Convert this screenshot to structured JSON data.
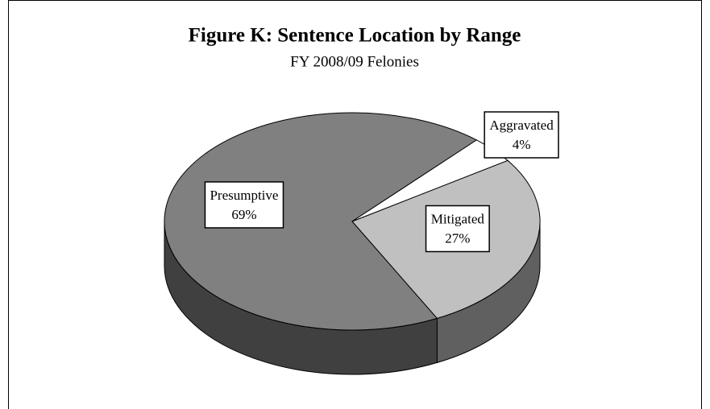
{
  "chart_data": {
    "type": "pie",
    "title": "Figure K:  Sentence Location by Range",
    "subtitle": "FY 2008/09 Felonies",
    "categories": [
      "Presumptive",
      "Mitigated",
      "Aggravated"
    ],
    "values": [
      69,
      27,
      4
    ],
    "value_labels": [
      "69%",
      "27%",
      "4%"
    ],
    "colors": [
      "#808080",
      "#c0c0c0",
      "#ffffff"
    ]
  }
}
